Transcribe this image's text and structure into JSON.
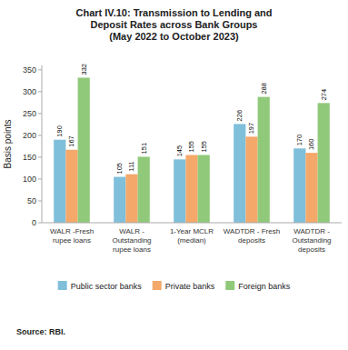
{
  "chart_data": {
    "type": "bar",
    "title": "Chart IV.10: Transmission to Lending and\nDeposit Rates across Bank Groups",
    "subtitle": "(May 2022 to October 2023)",
    "categories": [
      "WALR -Fresh\nrupee loans",
      "WALR -\nOutstanding\nrupee loans",
      "1-Year MCLR\n(median)",
      "WADTDR - Fresh\ndeposits",
      "WADTDR -\nOutstanding\ndeposits"
    ],
    "series": [
      {
        "name": "Public sector banks",
        "color": "#7fbfda",
        "values": [
          190,
          105,
          145,
          226,
          170
        ]
      },
      {
        "name": "Private banks",
        "color": "#f4a86a",
        "values": [
          167,
          111,
          155,
          197,
          160
        ]
      },
      {
        "name": "Foreign banks",
        "color": "#90c97a",
        "values": [
          332,
          151,
          155,
          288,
          274
        ]
      }
    ],
    "ylabel": "Basis points",
    "ylim": [
      0,
      360
    ],
    "yticks": [
      0,
      50,
      100,
      150,
      200,
      250,
      300,
      350
    ],
    "grid": false,
    "legend": "bottom",
    "data_labels": true,
    "annotations": [
      "Source: RBI."
    ]
  }
}
